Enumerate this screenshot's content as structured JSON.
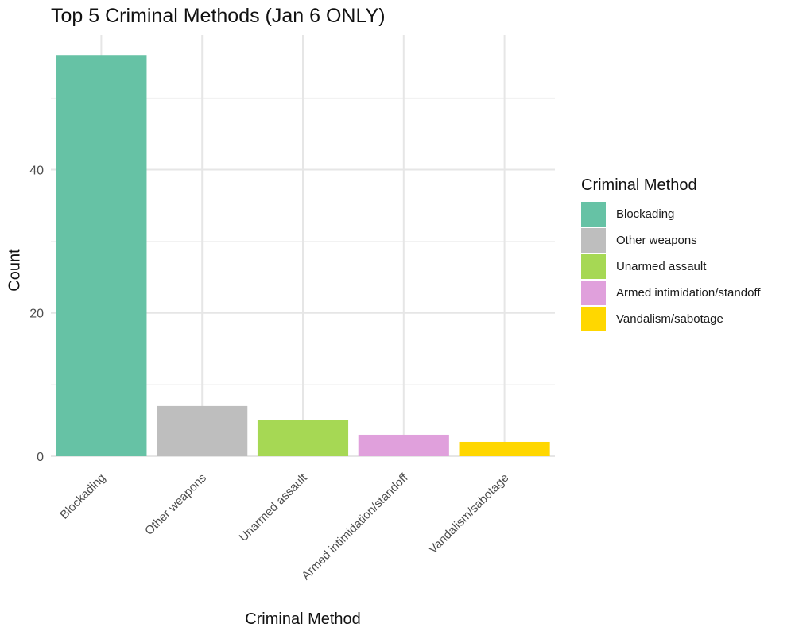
{
  "chart_data": {
    "type": "bar",
    "title": "Top 5 Criminal Methods (Jan 6 ONLY)",
    "xlabel": "Criminal Method",
    "ylabel": "Count",
    "categories": [
      "Blockading",
      "Other weapons",
      "Unarmed assault",
      "Armed intimidation/standoff",
      "Vandalism/sabotage"
    ],
    "values": [
      56,
      7,
      5,
      3,
      2
    ],
    "colors": [
      "#66C2A5",
      "#BEBEBE",
      "#A6D854",
      "#E0A0DC",
      "#FFD700"
    ],
    "ylim": [
      0,
      56
    ],
    "yticks": [
      0,
      20,
      40
    ],
    "grid": true,
    "legend": {
      "title": "Criminal Method",
      "position": "right",
      "items": [
        "Blockading",
        "Other weapons",
        "Unarmed assault",
        "Armed intimidation/standoff",
        "Vandalism/sabotage"
      ]
    }
  }
}
